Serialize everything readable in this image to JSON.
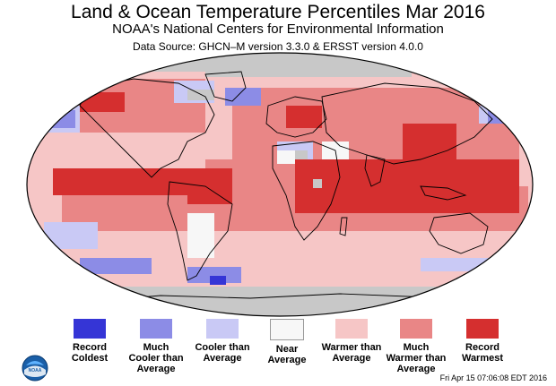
{
  "title": "Land & Ocean Temperature Percentiles Mar 2016",
  "subtitle": "NOAA's National Centers for Environmental Information",
  "source": "Data Source: GHCN–M version 3.3.0 & ERSST version 4.0.0",
  "legend": [
    {
      "lines": [
        "Record",
        "Coldest"
      ],
      "color": "#3535d6"
    },
    {
      "lines": [
        "Much",
        "Cooler than",
        "Average"
      ],
      "color": "#8c8ce6"
    },
    {
      "lines": [
        "Cooler than",
        "Average"
      ],
      "color": "#c9c9f5"
    },
    {
      "lines": [
        "Near",
        "Average"
      ],
      "color": "#f7f7f7"
    },
    {
      "lines": [
        "Warmer than",
        "Average"
      ],
      "color": "#f6c6c6"
    },
    {
      "lines": [
        "Much",
        "Warmer than",
        "Average"
      ],
      "color": "#e98686"
    },
    {
      "lines": [
        "Record",
        "Warmest"
      ],
      "color": "#d52f2f"
    }
  ],
  "colors": {
    "no_data": "#c8c8c8",
    "coastline": "#000000"
  },
  "logo": {
    "text": "NOAA"
  },
  "timestamp": "Fri Apr 15 07:06:08 EDT 2016"
}
